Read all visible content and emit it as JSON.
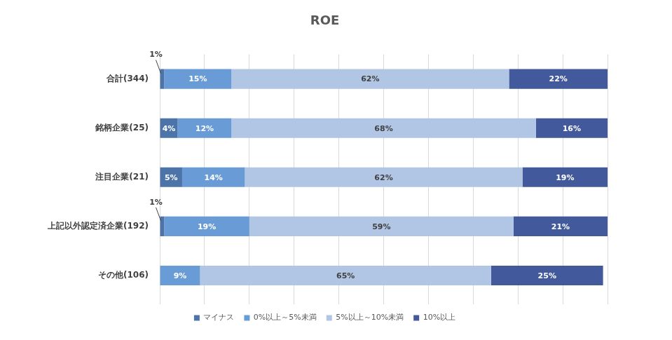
{
  "chart_data": {
    "type": "bar",
    "title": "ROE",
    "orientation": "horizontal",
    "stacked": true,
    "data_labels": true,
    "grid": true,
    "tick_labels": "y",
    "legend": "bottom",
    "categories": [
      "合計(344)",
      "銘柄企業(25)",
      "注目企業(21)",
      "上記以外認定済企業(192)",
      "その他(106)"
    ],
    "xlim": [
      0,
      100
    ],
    "xticks": [
      0,
      10,
      20,
      30,
      40,
      50,
      60,
      70,
      80,
      90,
      100
    ],
    "series": [
      {
        "name": "マイナス",
        "color": "#4c74a9",
        "values": [
          1,
          4,
          5,
          1,
          null
        ],
        "value_labels": [
          "1%",
          "4%",
          "5%",
          "1%",
          null
        ]
      },
      {
        "name": "0%以上～5%未満",
        "color": "#699bd6",
        "values": [
          15,
          12,
          14,
          19,
          9
        ],
        "value_labels": [
          "15%",
          "12%",
          "14%",
          "19%",
          "9%"
        ]
      },
      {
        "name": "5%以上～10%未満",
        "color": "#b1c5e4",
        "values": [
          62,
          68,
          62,
          59,
          65
        ],
        "value_labels": [
          "62%",
          "68%",
          "62%",
          "59%",
          "65%"
        ]
      },
      {
        "name": "10%以上",
        "color": "#42599c",
        "values": [
          22,
          16,
          19,
          21,
          25
        ],
        "value_labels": [
          "22%",
          "16%",
          "19%",
          "21%",
          "25%"
        ]
      }
    ]
  }
}
